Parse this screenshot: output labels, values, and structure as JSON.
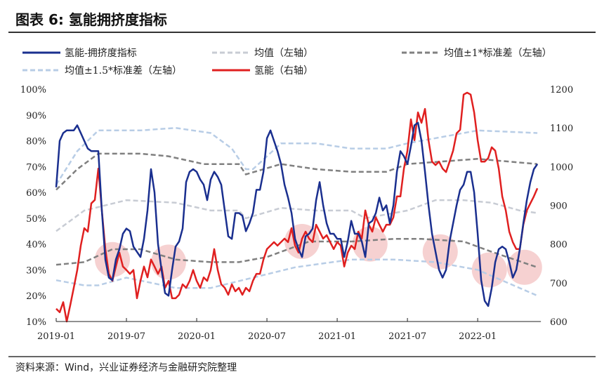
{
  "title": "图表 6:  氢能拥挤度指标",
  "source": "资料来源：Wind，兴业证券经济与金融研究院整理",
  "chart_data": {
    "type": "line",
    "title": "氢能拥挤度指标",
    "x_start": "2019-01",
    "x_step_months": 0.3,
    "x_ticks": [
      "2019-01",
      "2019-07",
      "2020-01",
      "2020-07",
      "2021-01",
      "2021-07",
      "2022-01"
    ],
    "x_tick_months": [
      0,
      6,
      12,
      18,
      24,
      30,
      36
    ],
    "x_range_months": [
      0,
      41.4
    ],
    "y_left": {
      "ticks": [
        "10%",
        "20%",
        "30%",
        "40%",
        "50%",
        "60%",
        "70%",
        "80%",
        "90%",
        "100%"
      ],
      "range": [
        10,
        100
      ]
    },
    "y_right": {
      "ticks": [
        "600",
        "700",
        "800",
        "900",
        "1000",
        "1100",
        "1200"
      ],
      "range": [
        600,
        1200
      ]
    },
    "legend": [
      "氢能-拥挤度指标",
      "均值（左轴）",
      "均值±1*标准差（左轴）",
      "均值±1.5*标准差（左轴）",
      "氢能（右轴）"
    ],
    "colors": {
      "index": "#1a2f8f",
      "hydrogen": "#e02020",
      "mean": "#c8ccd4",
      "std1": "#808080",
      "std15": "#b8cde6",
      "highlight": "#f4c6c6"
    },
    "index_series": [
      62,
      80,
      83,
      84,
      84,
      84,
      86,
      83,
      80,
      77,
      76,
      76,
      76,
      53,
      34,
      27,
      26,
      34,
      38,
      44,
      46,
      45,
      39,
      37,
      35,
      42,
      53,
      69,
      60,
      40,
      30,
      21,
      20,
      30,
      39,
      41,
      46,
      64,
      68,
      69,
      68,
      65,
      63,
      57,
      65,
      68,
      66,
      63,
      53,
      43,
      42,
      52,
      52,
      51,
      45,
      48,
      52,
      61,
      61,
      68,
      81,
      84,
      80,
      76,
      71,
      63,
      58,
      52,
      42,
      38,
      35,
      43,
      44,
      46,
      57,
      64,
      55,
      48,
      44,
      44,
      42,
      42,
      35,
      41,
      49,
      44,
      44,
      41,
      35,
      48,
      49,
      52,
      58,
      53,
      55,
      48,
      55,
      68,
      76,
      74,
      71,
      78,
      86,
      87,
      80,
      68,
      55,
      44,
      37,
      30,
      27,
      30,
      41,
      48,
      55,
      61,
      63,
      68,
      68,
      60,
      44,
      26,
      18,
      16,
      23,
      33,
      38,
      39,
      38,
      33,
      27,
      30,
      38,
      48,
      57,
      64,
      69,
      71
    ],
    "hydrogen_series": [
      633,
      624,
      650,
      600,
      642,
      687,
      733,
      796,
      841,
      832,
      905,
      914,
      995,
      887,
      787,
      723,
      705,
      742,
      778,
      742,
      733,
      723,
      733,
      660,
      705,
      742,
      714,
      760,
      742,
      723,
      742,
      687,
      705,
      660,
      660,
      669,
      696,
      687,
      705,
      733,
      705,
      687,
      714,
      705,
      733,
      787,
      733,
      696,
      687,
      669,
      696,
      678,
      687,
      669,
      687,
      678,
      705,
      723,
      723,
      760,
      787,
      796,
      805,
      796,
      805,
      814,
      805,
      841,
      796,
      778,
      814,
      832,
      814,
      805,
      850,
      832,
      814,
      823,
      805,
      787,
      805,
      796,
      742,
      778,
      796,
      787,
      832,
      814,
      887,
      850,
      832,
      869,
      850,
      832,
      850,
      850,
      869,
      923,
      923,
      995,
      1041,
      1122,
      1068,
      1140,
      1113,
      1149,
      1068,
      1013,
      1004,
      1013,
      995,
      986,
      1013,
      1041,
      1086,
      1095,
      1186,
      1191,
      1186,
      1140,
      1068,
      1013,
      1013,
      1022,
      1050,
      1041,
      995,
      923,
      887,
      832,
      805,
      787,
      787,
      850,
      887,
      905,
      923,
      944
    ],
    "mean": [
      [
        0,
        45
      ],
      [
        2.4,
        53
      ],
      [
        6,
        57
      ],
      [
        10.2,
        56
      ],
      [
        13.2,
        53
      ],
      [
        15.6,
        53
      ],
      [
        16.2,
        50
      ],
      [
        19.2,
        54
      ],
      [
        22.2,
        53
      ],
      [
        25.2,
        53
      ],
      [
        26.4,
        50
      ],
      [
        30,
        53
      ],
      [
        32.4,
        57
      ],
      [
        34.8,
        57
      ],
      [
        37.2,
        56
      ],
      [
        39.6,
        53
      ],
      [
        41.1,
        52
      ]
    ],
    "mean_plus_1sd": [
      [
        0,
        61
      ],
      [
        1.8,
        69
      ],
      [
        3.6,
        75
      ],
      [
        7.2,
        75
      ],
      [
        9.6,
        74
      ],
      [
        12.6,
        71
      ],
      [
        15.6,
        71
      ],
      [
        16.2,
        67
      ],
      [
        19.2,
        71
      ],
      [
        22.2,
        69
      ],
      [
        25.2,
        68
      ],
      [
        28.2,
        68
      ],
      [
        30,
        71
      ],
      [
        36,
        73
      ],
      [
        41.1,
        71
      ]
    ],
    "mean_minus_1sd": [
      [
        0,
        32
      ],
      [
        2.4,
        33
      ],
      [
        4.8,
        38
      ],
      [
        7.2,
        38
      ],
      [
        10.2,
        34
      ],
      [
        13.2,
        33
      ],
      [
        15.6,
        33
      ],
      [
        18,
        35
      ],
      [
        21.6,
        41
      ],
      [
        25.2,
        41
      ],
      [
        28.8,
        42
      ],
      [
        31.2,
        42
      ],
      [
        34.8,
        41
      ],
      [
        37.2,
        37
      ],
      [
        41.1,
        31
      ]
    ],
    "mean_plus_1_5sd": [
      [
        0,
        63
      ],
      [
        1.8,
        76
      ],
      [
        3.6,
        84
      ],
      [
        7.2,
        84
      ],
      [
        10.2,
        85
      ],
      [
        13.2,
        83
      ],
      [
        15,
        77
      ],
      [
        16.2,
        69
      ],
      [
        16.8,
        69
      ],
      [
        19.2,
        79
      ],
      [
        22.2,
        79
      ],
      [
        25.2,
        77
      ],
      [
        28.2,
        77
      ],
      [
        30,
        79
      ],
      [
        36,
        84
      ],
      [
        41.1,
        83
      ]
    ],
    "mean_minus_1_5sd": [
      [
        0,
        26
      ],
      [
        2.4,
        24
      ],
      [
        3.6,
        24
      ],
      [
        6,
        27
      ],
      [
        10.2,
        23
      ],
      [
        13.2,
        23
      ],
      [
        16.8,
        27
      ],
      [
        20.4,
        31
      ],
      [
        25.2,
        34
      ],
      [
        28.8,
        34
      ],
      [
        32.4,
        33
      ],
      [
        36,
        30
      ],
      [
        41.1,
        20
      ]
    ],
    "highlights": [
      [
        4.8,
        34
      ],
      [
        9.6,
        33
      ],
      [
        21,
        41
      ],
      [
        26.8,
        40
      ],
      [
        32.8,
        37
      ],
      [
        37,
        30
      ],
      [
        40,
        31
      ]
    ]
  }
}
